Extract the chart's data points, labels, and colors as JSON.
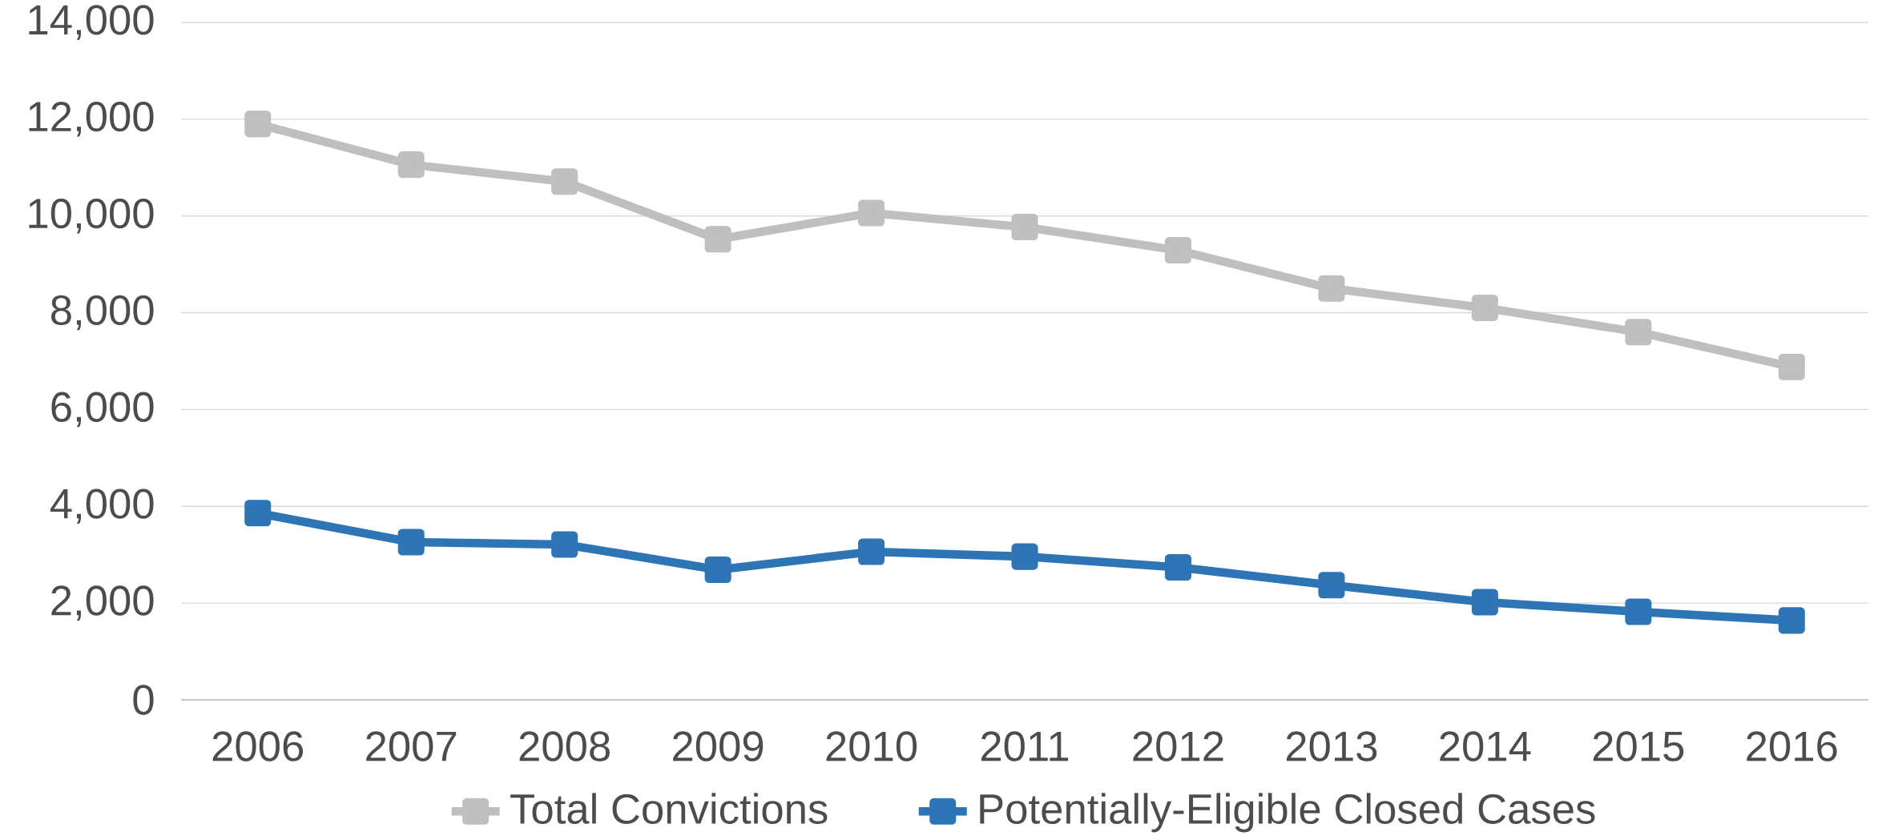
{
  "chart_data": {
    "type": "line",
    "categories": [
      "2006",
      "2007",
      "2008",
      "2009",
      "2010",
      "2011",
      "2012",
      "2013",
      "2014",
      "2015",
      "2016"
    ],
    "series": [
      {
        "name": "Total Convictions",
        "color": "#bfbfbf",
        "values": [
          11900,
          11060,
          10710,
          9520,
          10060,
          9770,
          9290,
          8500,
          8100,
          7600,
          6880
        ]
      },
      {
        "name": "Potentially-Eligible Closed Cases",
        "color": "#2e75b6",
        "values": [
          3860,
          3260,
          3210,
          2690,
          3060,
          2960,
          2740,
          2370,
          2020,
          1820,
          1640
        ]
      }
    ],
    "ylim": [
      0,
      14000
    ],
    "yticks": [
      {
        "value": 0,
        "label": "0"
      },
      {
        "value": 2000,
        "label": "2,000"
      },
      {
        "value": 4000,
        "label": "4,000"
      },
      {
        "value": 6000,
        "label": "6,000"
      },
      {
        "value": 8000,
        "label": "8,000"
      },
      {
        "value": 10000,
        "label": "10,000"
      },
      {
        "value": 12000,
        "label": "12,000"
      },
      {
        "value": 14000,
        "label": "14,000"
      }
    ],
    "grid": "y",
    "legend": "bottom",
    "marker": "square",
    "line_style": "solid"
  }
}
